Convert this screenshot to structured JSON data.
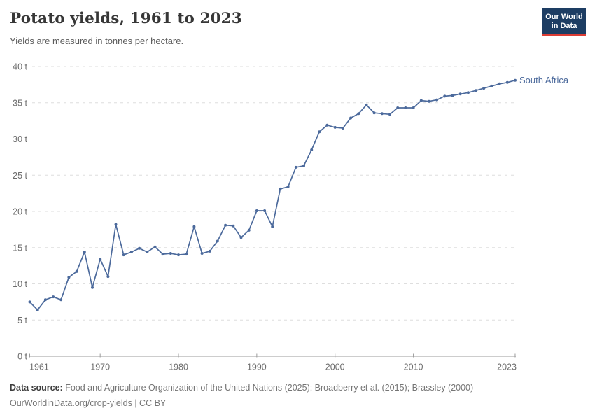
{
  "header": {
    "title": "Potato yields, 1961 to 2023",
    "subtitle": "Yields are measured in tonnes per hectare."
  },
  "logo": {
    "line1": "Our World",
    "line2": "in Data",
    "bg_color": "#1d3d63",
    "bar_color": "#dc3c34"
  },
  "chart_data": {
    "type": "line",
    "title": "Potato yields, 1961 to 2023",
    "unit": "t",
    "xlabel": "",
    "ylabel": "tonnes per hectare",
    "xlim": [
      1961,
      2023
    ],
    "ylim": [
      0,
      40
    ],
    "grid": "horizontal-dashed",
    "legend_position": "line-end-label",
    "yticks": [
      0,
      5,
      10,
      15,
      20,
      25,
      30,
      35,
      40
    ],
    "ytick_suffix": " t",
    "xticks": [
      1961,
      1970,
      1980,
      1990,
      2000,
      2010,
      2023
    ],
    "series": [
      {
        "name": "South Africa",
        "color": "#4C6A9C",
        "years": [
          1961,
          1962,
          1963,
          1964,
          1965,
          1966,
          1967,
          1968,
          1969,
          1970,
          1971,
          1972,
          1973,
          1974,
          1975,
          1976,
          1977,
          1978,
          1979,
          1980,
          1981,
          1982,
          1983,
          1984,
          1985,
          1986,
          1987,
          1988,
          1989,
          1990,
          1991,
          1992,
          1993,
          1994,
          1995,
          1996,
          1997,
          1998,
          1999,
          2000,
          2001,
          2002,
          2003,
          2004,
          2005,
          2006,
          2007,
          2008,
          2009,
          2010,
          2011,
          2012,
          2013,
          2014,
          2015,
          2016,
          2017,
          2018,
          2019,
          2020,
          2021,
          2022,
          2023
        ],
        "values": [
          7.5,
          6.4,
          7.8,
          8.2,
          7.8,
          10.9,
          11.7,
          14.4,
          9.5,
          13.4,
          11.0,
          18.2,
          14.0,
          14.4,
          14.9,
          14.4,
          15.1,
          14.1,
          14.2,
          14.0,
          14.1,
          17.9,
          14.2,
          14.5,
          15.9,
          18.1,
          18.0,
          16.4,
          17.4,
          20.1,
          20.1,
          17.9,
          23.1,
          23.4,
          26.1,
          26.3,
          28.5,
          31.0,
          31.9,
          31.6,
          31.5,
          32.9,
          33.5,
          34.7,
          33.6,
          33.5,
          33.4,
          34.3,
          34.3,
          34.3,
          35.3,
          35.2,
          35.4,
          35.9,
          36.0,
          36.2,
          36.4,
          36.7,
          37.0,
          37.3,
          37.6,
          37.8,
          38.1
        ]
      }
    ]
  },
  "footer": {
    "source_label": "Data source:",
    "source_text": "Food and Agriculture Organization of the United Nations (2025); Broadberry et al. (2015); Brassley (2000)",
    "url": "OurWorldinData.org/crop-yields",
    "sep": " | ",
    "license": "CC BY"
  }
}
